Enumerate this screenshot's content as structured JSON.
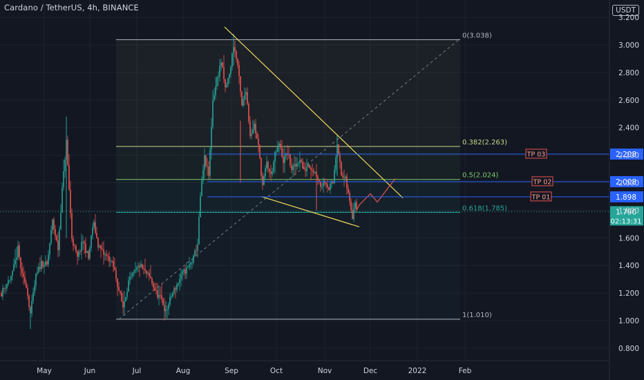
{
  "header": {
    "title": "Cardano / TetherUS, 4h, BINANCE"
  },
  "currency": "USDT",
  "chart_data": {
    "type": "candlestick",
    "title": "Cardano / TetherUS, 4h, BINANCE",
    "ylim": [
      0.8,
      3.2
    ],
    "y_ticks": [
      "3.200",
      "3.000",
      "2.800",
      "2.600",
      "2.400",
      "2.200",
      "2.000",
      "1.800",
      "1.600",
      "1.400",
      "1.200",
      "1.000",
      "0.800"
    ],
    "y_tick_values": [
      3.2,
      3.0,
      2.8,
      2.6,
      2.4,
      2.2,
      2.0,
      1.8,
      1.6,
      1.4,
      1.2,
      1.0,
      0.8
    ],
    "x_ticks": [
      "May",
      "Jun",
      "Jul",
      "Aug",
      "Sep",
      "Oct",
      "Nov",
      "Dec",
      "2022",
      "Feb"
    ],
    "price_path": [
      [
        2,
        1.2
      ],
      [
        18,
        1.34
      ],
      [
        26,
        1.52
      ],
      [
        32,
        1.32
      ],
      [
        38,
        1.26
      ],
      [
        44,
        1.05
      ],
      [
        52,
        1.32
      ],
      [
        60,
        1.42
      ],
      [
        68,
        1.4
      ],
      [
        76,
        1.72
      ],
      [
        84,
        1.52
      ],
      [
        90,
        1.95
      ],
      [
        96,
        2.3
      ],
      [
        104,
        1.6
      ],
      [
        112,
        1.45
      ],
      [
        120,
        1.58
      ],
      [
        128,
        1.45
      ],
      [
        135,
        1.72
      ],
      [
        142,
        1.55
      ],
      [
        150,
        1.48
      ],
      [
        158,
        1.45
      ],
      [
        165,
        1.38
      ],
      [
        172,
        1.22
      ],
      [
        178,
        1.1
      ],
      [
        186,
        1.28
      ],
      [
        194,
        1.34
      ],
      [
        202,
        1.4
      ],
      [
        210,
        1.35
      ],
      [
        218,
        1.3
      ],
      [
        226,
        1.2
      ],
      [
        234,
        1.15
      ],
      [
        240,
        1.06
      ],
      [
        248,
        1.18
      ],
      [
        256,
        1.26
      ],
      [
        264,
        1.34
      ],
      [
        272,
        1.38
      ],
      [
        280,
        1.45
      ],
      [
        286,
        1.56
      ],
      [
        290,
        1.9
      ],
      [
        296,
        2.18
      ],
      [
        302,
        2.05
      ],
      [
        308,
        2.6
      ],
      [
        314,
        2.75
      ],
      [
        320,
        2.88
      ],
      [
        326,
        2.68
      ],
      [
        332,
        2.78
      ],
      [
        338,
        3.0
      ],
      [
        344,
        2.85
      ],
      [
        350,
        2.55
      ],
      [
        356,
        2.68
      ],
      [
        362,
        2.35
      ],
      [
        368,
        2.42
      ],
      [
        374,
        2.26
      ],
      [
        380,
        1.98
      ],
      [
        386,
        2.14
      ],
      [
        392,
        2.05
      ],
      [
        398,
        2.2
      ],
      [
        404,
        2.28
      ],
      [
        410,
        2.16
      ],
      [
        416,
        2.22
      ],
      [
        422,
        2.1
      ],
      [
        428,
        2.12
      ],
      [
        434,
        2.18
      ],
      [
        440,
        2.08
      ],
      [
        446,
        2.14
      ],
      [
        452,
        2.1
      ],
      [
        458,
        2.06
      ],
      [
        464,
        1.98
      ],
      [
        470,
        2.02
      ],
      [
        476,
        1.96
      ],
      [
        482,
        2.0
      ],
      [
        488,
        2.3
      ],
      [
        494,
        2.05
      ],
      [
        500,
        2.02
      ],
      [
        506,
        1.86
      ],
      [
        510,
        1.76
      ],
      [
        514,
        1.88
      ],
      [
        517,
        1.8
      ]
    ],
    "fibonacci": [
      {
        "label": "0(3.038)",
        "value": 3.038,
        "color": "#b2b5be"
      },
      {
        "label": "0.382(2.263)",
        "value": 2.263,
        "color": "#c8d88a"
      },
      {
        "label": "0.5(2.024)",
        "value": 2.024,
        "color": "#7ec96b"
      },
      {
        "label": "0.618(1.785)",
        "value": 1.785,
        "color": "#26a69a"
      },
      {
        "label": "1(1.010)",
        "value": 1.01,
        "color": "#b2b5be"
      }
    ],
    "targets": [
      {
        "label": "TP 03",
        "value": 2.208,
        "price": "2.208"
      },
      {
        "label": "TP 02",
        "value": 2.008,
        "price": "2.008"
      },
      {
        "label": "TP 01",
        "value": 1.898,
        "price": "1.898"
      }
    ],
    "last_price": {
      "price": "1.790",
      "value": 1.79,
      "countdown": "02:13:31"
    }
  },
  "colors": {
    "background": "#131722",
    "grid": "#1e222d",
    "up": "#26a69a",
    "down": "#ef5350",
    "trendline": "#f0d85a",
    "target_line": "#2962ff",
    "projection": "#ef5350",
    "fib_trend": "#787b86"
  }
}
